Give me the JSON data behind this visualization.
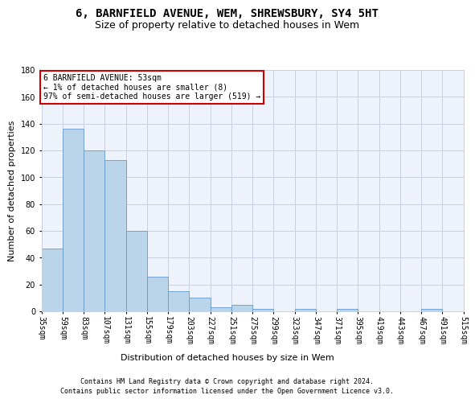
{
  "title1": "6, BARNFIELD AVENUE, WEM, SHREWSBURY, SY4 5HT",
  "title2": "Size of property relative to detached houses in Wem",
  "xlabel": "Distribution of detached houses by size in Wem",
  "ylabel": "Number of detached properties",
  "bar_values": [
    47,
    136,
    120,
    113,
    60,
    26,
    15,
    10,
    3,
    5,
    2,
    0,
    2,
    0,
    2,
    0,
    0,
    0,
    2,
    0
  ],
  "categories": [
    "35sqm",
    "59sqm",
    "83sqm",
    "107sqm",
    "131sqm",
    "155sqm",
    "179sqm",
    "203sqm",
    "227sqm",
    "251sqm",
    "275sqm",
    "299sqm",
    "323sqm",
    "347sqm",
    "371sqm",
    "395sqm",
    "419sqm",
    "443sqm",
    "467sqm",
    "491sqm",
    "515sqm"
  ],
  "bar_color": "#bad4ea",
  "bar_edge_color": "#6699cc",
  "ylim": [
    0,
    180
  ],
  "yticks": [
    0,
    20,
    40,
    60,
    80,
    100,
    120,
    140,
    160,
    180
  ],
  "annotation_box_color": "#ffffff",
  "annotation_border_color": "#cc0000",
  "annotation_text_line1": "6 BARNFIELD AVENUE: 53sqm",
  "annotation_text_line2": "← 1% of detached houses are smaller (8)",
  "annotation_text_line3": "97% of semi-detached houses are larger (519) →",
  "footer_line1": "Contains HM Land Registry data © Crown copyright and database right 2024.",
  "footer_line2": "Contains public sector information licensed under the Open Government Licence v3.0.",
  "fig_bg_color": "#ffffff",
  "plot_bg_color": "#eef2fa",
  "grid_color": "#c8cfe0",
  "title_fontsize": 10,
  "subtitle_fontsize": 9,
  "axis_label_fontsize": 8,
  "tick_fontsize": 7,
  "footer_fontsize": 6,
  "annotation_fontsize": 7
}
